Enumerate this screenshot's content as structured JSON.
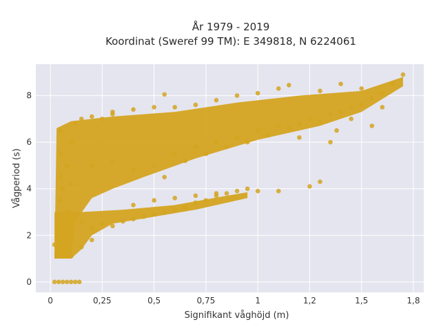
{
  "chart_data": {
    "type": "scatter",
    "title": "År 1979 - 2019",
    "subtitle": "Koordinat (Sweref 99 TM): E 349818, N 6224061",
    "xlabel": "Signifikant våghöjd (m)",
    "ylabel": "Vågperiod (s)",
    "xlim": [
      -0.07,
      1.8
    ],
    "ylim": [
      -0.45,
      9.35
    ],
    "x_ticks": [
      {
        "value": 0,
        "label": "0"
      },
      {
        "value": 0.25,
        "label": "0,25"
      },
      {
        "value": 0.5,
        "label": "0,5"
      },
      {
        "value": 0.75,
        "label": "0,75"
      },
      {
        "value": 1.0,
        "label": "1"
      },
      {
        "value": 1.25,
        "label": "1,2"
      },
      {
        "value": 1.5,
        "label": "1,5"
      },
      {
        "value": 1.75,
        "label": "1,8"
      }
    ],
    "y_ticks": [
      {
        "value": 0,
        "label": "0"
      },
      {
        "value": 2,
        "label": "2"
      },
      {
        "value": 4,
        "label": "4"
      },
      {
        "value": 6,
        "label": "6"
      },
      {
        "value": 8,
        "label": "8"
      }
    ],
    "grid": true,
    "background": "#e5e5ef",
    "marker_color": "#d4a420",
    "series": [
      {
        "points": [
          [
            0.02,
            0.0
          ],
          [
            0.04,
            0.0
          ],
          [
            0.06,
            0.0
          ],
          [
            0.08,
            0.0
          ],
          [
            0.1,
            0.0
          ],
          [
            0.12,
            0.0
          ],
          [
            0.14,
            0.0
          ],
          [
            0.02,
            1.6
          ],
          [
            0.03,
            1.2
          ],
          [
            0.05,
            1.5
          ],
          [
            0.08,
            1.3
          ],
          [
            0.1,
            1.1
          ],
          [
            0.15,
            1.5
          ],
          [
            0.2,
            1.8
          ],
          [
            0.05,
            2.5
          ],
          [
            0.08,
            3.0
          ],
          [
            0.1,
            2.2
          ],
          [
            0.15,
            2.6
          ],
          [
            0.2,
            2.3
          ],
          [
            0.25,
            2.5
          ],
          [
            0.3,
            2.4
          ],
          [
            0.35,
            2.6
          ],
          [
            0.4,
            2.7
          ],
          [
            0.45,
            2.8
          ],
          [
            0.5,
            2.9
          ],
          [
            0.55,
            3.0
          ],
          [
            0.6,
            3.1
          ],
          [
            0.65,
            3.2
          ],
          [
            0.7,
            3.4
          ],
          [
            0.75,
            3.5
          ],
          [
            0.8,
            3.7
          ],
          [
            0.85,
            3.8
          ],
          [
            0.9,
            3.9
          ],
          [
            0.95,
            4.0
          ],
          [
            1.0,
            3.9
          ],
          [
            0.4,
            3.3
          ],
          [
            0.5,
            3.5
          ],
          [
            0.6,
            3.6
          ],
          [
            0.7,
            3.7
          ],
          [
            0.8,
            3.8
          ],
          [
            1.1,
            3.9
          ],
          [
            1.25,
            4.1
          ],
          [
            1.3,
            4.3
          ],
          [
            0.05,
            3.5
          ],
          [
            0.05,
            4.5
          ],
          [
            0.05,
            5.5
          ],
          [
            0.05,
            6.5
          ],
          [
            0.06,
            4.0
          ],
          [
            0.08,
            5.0
          ],
          [
            0.1,
            6.0
          ],
          [
            0.12,
            6.8
          ],
          [
            0.15,
            7.0
          ],
          [
            0.2,
            7.1
          ],
          [
            0.25,
            7.0
          ],
          [
            0.3,
            7.2
          ],
          [
            0.1,
            4.2
          ],
          [
            0.2,
            5.0
          ],
          [
            0.3,
            5.2
          ],
          [
            0.4,
            4.8
          ],
          [
            0.5,
            5.0
          ],
          [
            0.55,
            4.5
          ],
          [
            0.6,
            5.5
          ],
          [
            0.65,
            5.2
          ],
          [
            0.7,
            5.8
          ],
          [
            0.75,
            5.5
          ],
          [
            0.8,
            6.0
          ],
          [
            0.85,
            5.8
          ],
          [
            0.9,
            6.2
          ],
          [
            0.95,
            6.0
          ],
          [
            1.0,
            6.5
          ],
          [
            1.05,
            6.3
          ],
          [
            1.1,
            6.7
          ],
          [
            1.15,
            6.6
          ],
          [
            1.2,
            6.8
          ],
          [
            1.25,
            7.0
          ],
          [
            1.3,
            6.9
          ],
          [
            1.35,
            7.2
          ],
          [
            1.4,
            7.3
          ],
          [
            1.45,
            7.5
          ],
          [
            1.5,
            7.6
          ],
          [
            1.55,
            7.9
          ],
          [
            1.6,
            8.1
          ],
          [
            1.65,
            8.5
          ],
          [
            1.7,
            8.9
          ],
          [
            0.3,
            7.3
          ],
          [
            0.4,
            7.4
          ],
          [
            0.5,
            7.5
          ],
          [
            0.55,
            8.05
          ],
          [
            0.6,
            7.5
          ],
          [
            0.7,
            7.6
          ],
          [
            0.8,
            7.8
          ],
          [
            0.9,
            8.0
          ],
          [
            1.0,
            8.1
          ],
          [
            1.1,
            8.3
          ],
          [
            1.15,
            8.45
          ],
          [
            1.3,
            8.2
          ],
          [
            1.5,
            8.3
          ],
          [
            1.4,
            8.5
          ],
          [
            1.45,
            7.0
          ],
          [
            1.38,
            6.5
          ],
          [
            1.2,
            6.2
          ],
          [
            1.35,
            6.0
          ],
          [
            1.55,
            6.7
          ],
          [
            1.6,
            7.5
          ]
        ]
      }
    ]
  }
}
